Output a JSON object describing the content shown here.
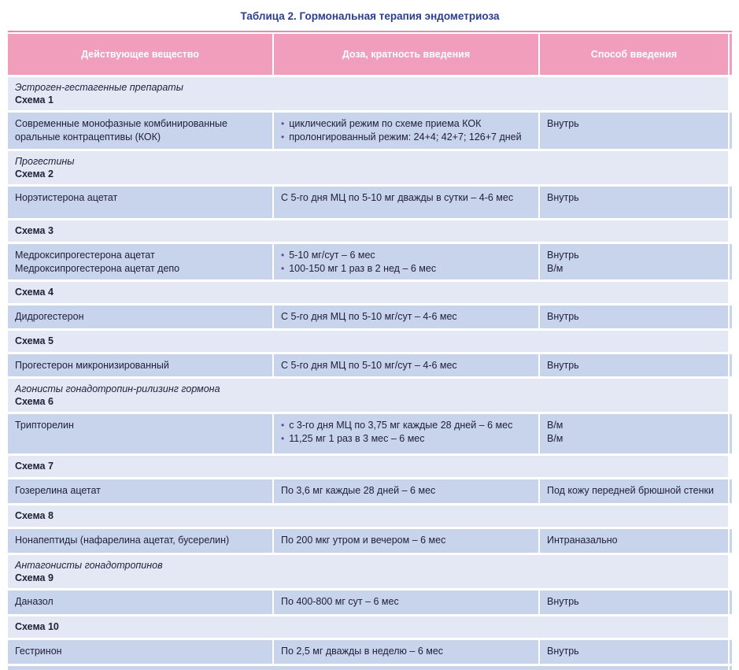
{
  "title": "Таблица 2. Гормональная терапия эндометриоза",
  "colors": {
    "header_pink": "#f09ebc",
    "border_pink": "#e889ae",
    "section_row": "#e3e8f4",
    "data_row": "#c8d3ec",
    "title_blue": "#2c3e90",
    "text": "#21213a",
    "bullet_purple": "#5b4a9e"
  },
  "table": {
    "headers": [
      "Действующее вещество",
      "Доза, кратность введения",
      "Способ введения"
    ],
    "rows": [
      {
        "type": "section",
        "group": "Эстроген-гестагенные препараты",
        "scheme": "Схема 1"
      },
      {
        "type": "data",
        "substance": [
          "Современные монофазные комбинированные оральные контрацептивы (КОК)"
        ],
        "dose": [
          "циклический режим по схеме приема КОК",
          "пролонгированный режим: 24+4; 42+7; 126+7 дней"
        ],
        "bulleted": true,
        "route": [
          "Внутрь"
        ]
      },
      {
        "type": "section",
        "group": "Прогестины",
        "scheme": "Схема 2"
      },
      {
        "type": "data",
        "substance": [
          "Норэтистерона ацетат"
        ],
        "dose": [
          "С 5-го дня МЦ по 5-10 мг дважды в сутки – 4-6 мес"
        ],
        "bulleted": false,
        "route": [
          "Внутрь"
        ]
      },
      {
        "type": "section",
        "scheme": "Схема 3"
      },
      {
        "type": "data",
        "substance": [
          "Медроксипрогестерона ацетат",
          "Медроксипрогестерона ацетат депо"
        ],
        "dose": [
          "5-10 мг/сут – 6 мес",
          "100-150 мг 1 раз в 2 нед – 6 мес"
        ],
        "bulleted": true,
        "route": [
          "Внутрь",
          "В/м"
        ]
      },
      {
        "type": "section",
        "scheme": "Схема 4"
      },
      {
        "type": "data",
        "substance": [
          "Дидрогестерон"
        ],
        "dose": [
          "С 5-го дня МЦ по 5-10 мг/сут – 4-6 мес"
        ],
        "bulleted": false,
        "route": [
          "Внутрь"
        ]
      },
      {
        "type": "section",
        "scheme": "Схема 5"
      },
      {
        "type": "data",
        "substance": [
          "Прогестерон микронизированный"
        ],
        "dose": [
          "С 5-го дня МЦ по 5-10 мг/сут – 4-6 мес"
        ],
        "bulleted": false,
        "route": [
          "Внутрь"
        ]
      },
      {
        "type": "section",
        "group": "Агонисты гонадотропин-рилизинг гормона",
        "scheme": "Схема 6"
      },
      {
        "type": "data",
        "substance": [
          "Трипторелин"
        ],
        "dose": [
          "с 3-го дня МЦ по 3,75 мг каждые 28 дней – 6 мес",
          "11,25 мг 1 раз в 3 мес – 6 мес"
        ],
        "bulleted": true,
        "route": [
          "В/м",
          "В/м"
        ]
      },
      {
        "type": "section",
        "scheme": "Схема 7"
      },
      {
        "type": "data",
        "substance": [
          "Гозерелина ацетат"
        ],
        "dose": [
          "По 3,6 мг каждые 28 дней – 6 мес"
        ],
        "bulleted": false,
        "route": [
          "Под кожу передней брюшной стенки"
        ]
      },
      {
        "type": "section",
        "scheme": "Схема 8"
      },
      {
        "type": "data",
        "substance": [
          "Нонапептиды (нафарелина ацетат, бусерелин)"
        ],
        "dose": [
          "По 200 мкг утром и вечером – 6 мес"
        ],
        "bulleted": false,
        "route": [
          "Интраназально"
        ]
      },
      {
        "type": "section",
        "group": "Антагонисты гонадотропинов",
        "scheme": "Схема 9"
      },
      {
        "type": "data",
        "substance": [
          "Даназол"
        ],
        "dose": [
          "По 400-800 мг сут – 6 мес"
        ],
        "bulleted": false,
        "route": [
          "Внутрь"
        ]
      },
      {
        "type": "section",
        "scheme": "Схема 10"
      },
      {
        "type": "data",
        "substance": [
          "Гестринон"
        ],
        "dose": [
          "По 2,5 мг дважды в неделю – 6 мес"
        ],
        "bulleted": false,
        "route": [
          "Внутрь"
        ]
      }
    ]
  }
}
